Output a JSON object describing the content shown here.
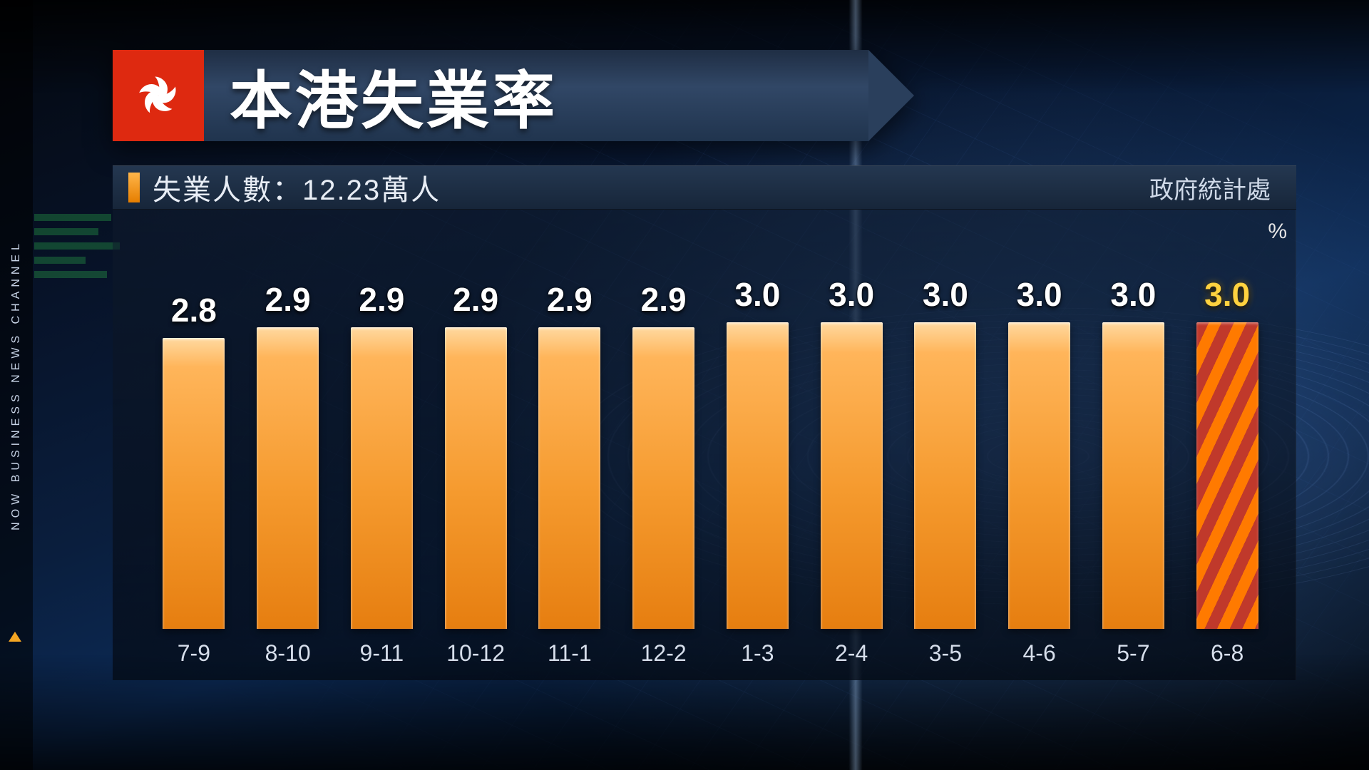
{
  "channel_label": "NOW BUSINESS NEWS CHANNEL",
  "title": "本港失業率",
  "flag_bg": "#de2910",
  "flag_flower": "#ffffff",
  "sub_left": "失業人數：12.23萬人",
  "sub_right": "政府統計處",
  "unit_label": "%",
  "chart": {
    "type": "bar",
    "ylim_max": 3.4,
    "value_fontsize": 46,
    "axis_fontsize": 32,
    "bar_color_top": "#ffd9a0",
    "bar_color_bottom": "#e67e10",
    "highlight_value_color": "#ffd23f",
    "stripe_color_a": "#c0392b",
    "stripe_color_b": "#ff7a00",
    "bars": [
      {
        "label": "7-9",
        "value": 2.8,
        "display": "2.8",
        "highlight": false
      },
      {
        "label": "8-10",
        "value": 2.9,
        "display": "2.9",
        "highlight": false
      },
      {
        "label": "9-11",
        "value": 2.9,
        "display": "2.9",
        "highlight": false
      },
      {
        "label": "10-12",
        "value": 2.9,
        "display": "2.9",
        "highlight": false
      },
      {
        "label": "11-1",
        "value": 2.9,
        "display": "2.9",
        "highlight": false
      },
      {
        "label": "12-2",
        "value": 2.9,
        "display": "2.9",
        "highlight": false
      },
      {
        "label": "1-3",
        "value": 3.0,
        "display": "3.0",
        "highlight": false
      },
      {
        "label": "2-4",
        "value": 3.0,
        "display": "3.0",
        "highlight": false
      },
      {
        "label": "3-5",
        "value": 3.0,
        "display": "3.0",
        "highlight": false
      },
      {
        "label": "4-6",
        "value": 3.0,
        "display": "3.0",
        "highlight": false
      },
      {
        "label": "5-7",
        "value": 3.0,
        "display": "3.0",
        "highlight": false
      },
      {
        "label": "6-8",
        "value": 3.0,
        "display": "3.0",
        "highlight": true
      }
    ]
  }
}
